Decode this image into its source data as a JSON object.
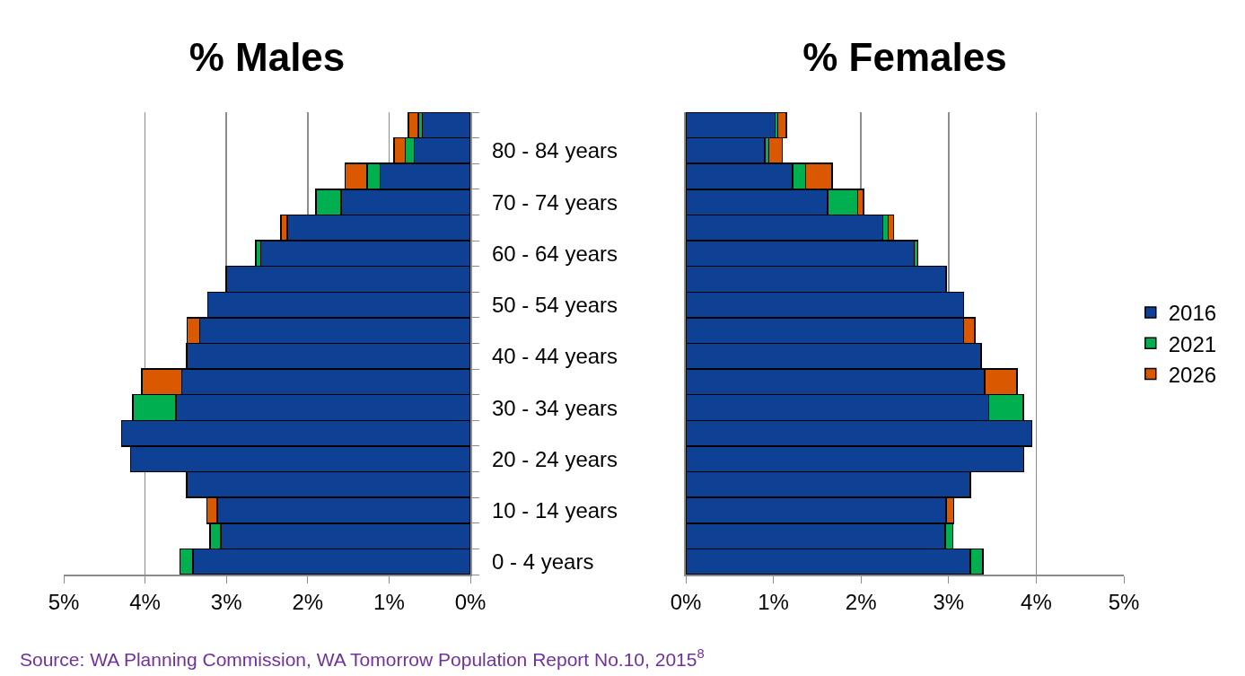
{
  "chart_data": [
    {
      "type": "bar",
      "orientation": "horizontal",
      "stacked": true,
      "title": "% Males",
      "categories": [
        null,
        "80 - 84 years",
        null,
        "70 - 74 years",
        null,
        "60 - 64 years",
        null,
        "50 - 54 years",
        null,
        "40 - 44 years",
        null,
        "30 - 34 years",
        null,
        "20 - 24 years",
        null,
        "10 - 14 years",
        null,
        "0 - 4 years"
      ],
      "series": [
        {
          "color": "#0e4194",
          "values": [
            0.59,
            0.69,
            1.11,
            1.59,
            2.25,
            2.58,
            3.0,
            3.23,
            3.33,
            3.49,
            3.55,
            3.62,
            4.29,
            4.18,
            3.49,
            3.11,
            3.07,
            3.41
          ]
        },
        {
          "color": "#00b050",
          "values": [
            0.05,
            0.11,
            0.16,
            0.31,
            0,
            0.06,
            0,
            0,
            0,
            0,
            0,
            0.53,
            0,
            0,
            0,
            0,
            0.13,
            0.16
          ]
        },
        {
          "color": "#d95800",
          "values": [
            0.12,
            0.14,
            0.27,
            0,
            0.08,
            0,
            0,
            0,
            0.15,
            0,
            0.49,
            0,
            0,
            0,
            0,
            0.13,
            0,
            0
          ]
        }
      ],
      "xlim": [
        5,
        0
      ],
      "xticks": [
        {
          "value": 5,
          "label": "5%"
        },
        {
          "value": 4,
          "label": "4%"
        },
        {
          "value": 3,
          "label": "3%"
        },
        {
          "value": 2,
          "label": "2%"
        },
        {
          "value": 1,
          "label": "1%"
        },
        {
          "value": 0,
          "label": "0%"
        }
      ],
      "grid": "x",
      "annotations": [
        "Source: WA Planning Commission, WA Tomorrow Population Report No.10, 2015$^{8}$"
      ]
    },
    {
      "type": "bar",
      "orientation": "horizontal",
      "stacked": true,
      "title": "% Females",
      "categories": [
        null,
        null,
        null,
        null,
        null,
        null,
        null,
        null,
        null,
        null,
        null,
        null,
        null,
        null,
        null,
        null,
        null,
        null
      ],
      "series": [
        {
          "name": "2016",
          "color": "#0e4194",
          "values": [
            1.02,
            0.9,
            1.22,
            1.62,
            2.25,
            2.61,
            2.97,
            3.17,
            3.17,
            3.37,
            3.41,
            3.46,
            3.95,
            3.86,
            3.25,
            2.97,
            2.96,
            3.25
          ]
        },
        {
          "name": "2021",
          "color": "#00b050",
          "values": [
            0.03,
            0.05,
            0.15,
            0.34,
            0.06,
            0.04,
            0,
            0,
            0,
            0,
            0,
            0.39,
            0,
            0,
            0,
            0,
            0.09,
            0.14
          ]
        },
        {
          "name": "2026",
          "color": "#d95800",
          "values": [
            0.1,
            0.15,
            0.3,
            0.07,
            0.06,
            0,
            0,
            0,
            0.13,
            0,
            0.37,
            0,
            0,
            0,
            0,
            0.09,
            0,
            0
          ]
        }
      ],
      "xlim": [
        0,
        5
      ],
      "xticks": [
        {
          "value": 0,
          "label": "0%"
        },
        {
          "value": 1,
          "label": "1%"
        },
        {
          "value": 2,
          "label": "2%"
        },
        {
          "value": 3,
          "label": "3%"
        },
        {
          "value": 4,
          "label": "4%"
        },
        {
          "value": 5,
          "label": "5%"
        }
      ],
      "grid": "x",
      "legend": "right",
      "tick_labels": "x"
    }
  ]
}
